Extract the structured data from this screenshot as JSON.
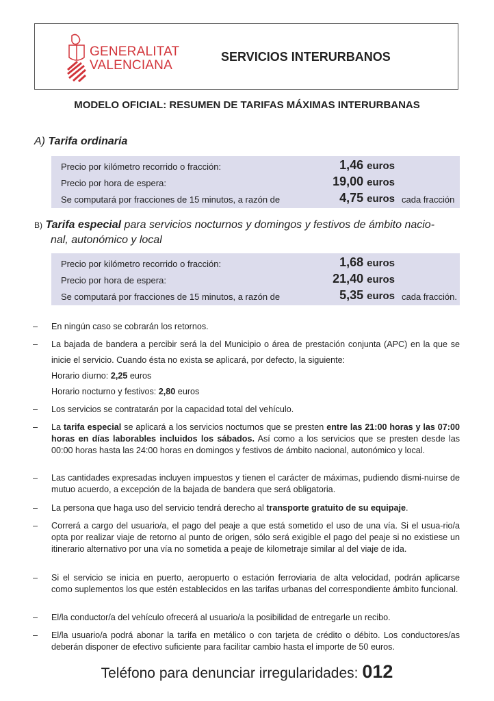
{
  "header": {
    "logo_line1": "GENERALITAT",
    "logo_line2": "VALENCIANA",
    "title": "SERVICIOS INTERURBANOS",
    "logo_color": "#d2343a"
  },
  "subtitle": "MODELO OFICIAL: RESUMEN DE TARIFAS MÁXIMAS INTERURBANAS",
  "section_a": {
    "prefix": "A)",
    "title": "Tarifa ordinaria",
    "rows": [
      {
        "label": "Precio por kilómetro recorrido o fracción:",
        "value": "1,46",
        "unit": "euros",
        "extra": ""
      },
      {
        "label": "Precio por hora de espera:",
        "value": "19,00",
        "unit": "euros",
        "extra": ""
      },
      {
        "label": "Se computará por fracciones de 15 minutos, a razón de",
        "value": "4,75",
        "unit": "euros",
        "extra": "cada fracción"
      }
    ]
  },
  "section_b": {
    "prefix": "B)",
    "title": "Tarifa especial",
    "rest1": " para servicios nocturnos y domingos y festivos de ámbito nacio-",
    "rest2": "nal, autonómico y local",
    "rows": [
      {
        "label": "Precio por kilómetro recorrido o fracción:",
        "value": "1,68",
        "unit": "euros",
        "extra": ""
      },
      {
        "label": "Precio por hora de espera:",
        "value": "21,40",
        "unit": "euros",
        "extra": ""
      },
      {
        "label": "Se computará por fracciones de 15 minutos, a razón de",
        "value": "5,35",
        "unit": "euros",
        "extra": "cada fracción."
      }
    ]
  },
  "dash": "–",
  "bullets": {
    "b1": "En ningún caso se cobrarán los retornos.",
    "b2": "La bajada de bandera a percibir será la del Municipio o área de prestación conjunta (APC) en la que se inicie el servicio. Cuando ésta no exista se aplicará, por defecto, la siguiente:",
    "b2_day_label": "Horario diurno: ",
    "b2_day_value": "2,25",
    "b2_day_unit": " euros",
    "b2_night_label": "Horario nocturno y festivos: ",
    "b2_night_value": "2,80",
    "b2_night_unit": " euros",
    "b3": "Los servicios se contratarán por la capacidad total del vehículo.",
    "b4_a": "La ",
    "b4_b": "tarifa especial",
    "b4_c": " se aplicará a los servicios nocturnos que se presten ",
    "b4_d": "entre las 21:00 horas y las 07:00 horas en días laborables incluidos los sábados.",
    "b4_e": " Así como a los servicios que se presten desde las 00:00 horas hasta las 24:00 horas en domingos y festivos de ámbito nacional, autonómico y local.",
    "b5": "Las cantidades expresadas incluyen impuestos y tienen el carácter de máximas, pudiendo dismi-nuirse de mutuo acuerdo, a excepción de la bajada de bandera que será obligatoria.",
    "b6_a": "La persona que haga uso del servicio tendrá derecho al ",
    "b6_b": "transporte gratuito de su equipaje",
    "b6_c": ".",
    "b7": "Correrá a cargo del usuario/a, el pago del peaje a que está sometido el uso de una vía. Si el usua-rio/a opta por realizar viaje de retorno al punto de origen, sólo será exigible el pago del peaje si no existiese un itinerario alternativo por una vía no sometida a peaje de kilometraje similar al del viaje de ida.",
    "b8": "Si el servicio se inicia en puerto, aeropuerto o estación ferroviaria de alta velocidad, podrán aplicarse como suplementos los que estén establecidos en las tarifas urbanas del correspondiente ámbito funcional.",
    "b9": "El/la conductor/a del vehículo ofrecerá al usuario/a la posibilidad de entregarle un recibo.",
    "b10": "El/la usuario/a podrá abonar la tarifa en metálico o con tarjeta de crédito o débito. Los conductores/as deberán disponer de efectivo suficiente para facilitar cambio hasta el importe de 50 euros."
  },
  "footer": {
    "text": "Teléfono para denunciar irregularidades: ",
    "number": "012"
  }
}
